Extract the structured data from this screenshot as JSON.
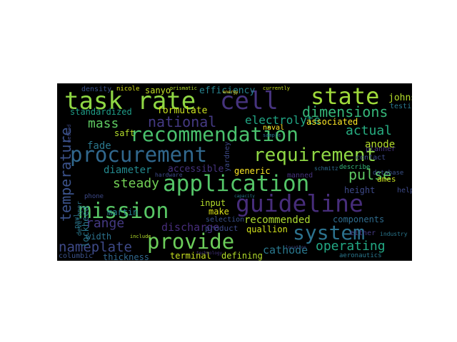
{
  "background": "#000000",
  "page_background": "#ffffff",
  "colormap": "viridis",
  "words": [
    {
      "text": "task rate",
      "color": "#8fd744"
    },
    {
      "text": "cell",
      "color": "#46337e"
    },
    {
      "text": "state",
      "color": "#9fda3a"
    },
    {
      "text": "recommendation",
      "color": "#4ac16d"
    },
    {
      "text": "procurement",
      "color": "#31688e"
    },
    {
      "text": "requirement",
      "color": "#8fd744"
    },
    {
      "text": "application",
      "color": "#54c568"
    },
    {
      "text": "guideline",
      "color": "#472d7b"
    },
    {
      "text": "mission",
      "color": "#58c765"
    },
    {
      "text": "system",
      "color": "#2c728e"
    },
    {
      "text": "provide",
      "color": "#6ccd5a"
    },
    {
      "text": "dimensions",
      "color": "#35b779"
    },
    {
      "text": "national",
      "color": "#443983"
    },
    {
      "text": "mass",
      "color": "#5ec962"
    },
    {
      "text": "temperature",
      "color": "#3b528b"
    },
    {
      "text": "actual",
      "color": "#27ad81"
    },
    {
      "text": "electrolyte",
      "color": "#21a685"
    },
    {
      "text": "steady",
      "color": "#73d056"
    },
    {
      "text": "pulse",
      "color": "#5ec962"
    },
    {
      "text": "range",
      "color": "#443983"
    },
    {
      "text": "nameplate",
      "color": "#3e4a89"
    },
    {
      "text": "discharge",
      "color": "#472d7b"
    },
    {
      "text": "operating",
      "color": "#22a884"
    },
    {
      "text": "composition",
      "color": "#33638d"
    },
    {
      "text": "cathode",
      "color": "#2a788e"
    },
    {
      "text": "diameter",
      "color": "#23898e"
    },
    {
      "text": "anode",
      "color": "#b5de2b"
    },
    {
      "text": "fade",
      "color": "#2a788e"
    },
    {
      "text": "formulate",
      "color": "#cae11f"
    },
    {
      "text": "standardized",
      "color": "#1f9e89"
    },
    {
      "text": "associated",
      "color": "#fde725"
    },
    {
      "text": "recommended",
      "color": "#addc30"
    },
    {
      "text": "accessible",
      "color": "#46337e"
    },
    {
      "text": "generic",
      "color": "#fde725"
    },
    {
      "text": "height",
      "color": "#3e4a89"
    },
    {
      "text": "components",
      "color": "#2f6c8e"
    },
    {
      "text": "quallion",
      "color": "#d2e21b"
    },
    {
      "text": "input",
      "color": "#b5de2b"
    },
    {
      "text": "make",
      "color": "#dde318"
    },
    {
      "text": "selection",
      "color": "#3b528b"
    },
    {
      "text": "product",
      "color": "#3e4a89"
    },
    {
      "text": "terminal",
      "color": "#c8e020"
    },
    {
      "text": "defining",
      "color": "#b5de2b"
    },
    {
      "text": "width",
      "color": "#2c728e"
    },
    {
      "text": "thickness",
      "color": "#31688e"
    },
    {
      "text": "columbic",
      "color": "#3b528b"
    },
    {
      "text": "martin",
      "color": "#26828e"
    },
    {
      "text": "lockheed",
      "color": "#2a788e"
    },
    {
      "text": "saft",
      "color": "#b5de2b"
    },
    {
      "text": "sanyo",
      "color": "#c0df25"
    },
    {
      "text": "efficiency",
      "color": "#26828e"
    },
    {
      "text": "yardney",
      "color": "#3e4a89"
    },
    {
      "text": "naval",
      "color": "#fde725"
    },
    {
      "text": "johnson",
      "color": "#b5de2b"
    },
    {
      "text": "contact",
      "color": "#3e4a89"
    },
    {
      "text": "testing",
      "color": "#2a788e"
    },
    {
      "text": "planner",
      "color": "#46337e"
    },
    {
      "text": "database",
      "color": "#3b528b"
    },
    {
      "text": "manned",
      "color": "#46337e"
    },
    {
      "text": "describe",
      "color": "#35b779"
    },
    {
      "text": "schmitz",
      "color": "#2f6c8e"
    },
    {
      "text": "ames",
      "color": "#c8e020"
    },
    {
      "text": "help",
      "color": "#3e4a89"
    },
    {
      "text": "either",
      "color": "#443983"
    },
    {
      "text": "aeronautics",
      "color": "#2a788e"
    },
    {
      "text": "industry",
      "color": "#2a788e"
    },
    {
      "text": "developer",
      "color": "#2a788e"
    },
    {
      "text": "phone",
      "color": "#3e4a89"
    },
    {
      "text": "paul",
      "color": "#2a788e"
    },
    {
      "text": "hardware",
      "color": "#3e4a89"
    },
    {
      "text": "nicole",
      "color": "#d8e219"
    },
    {
      "text": "density",
      "color": "#3b528b"
    },
    {
      "text": "prismatic",
      "color": "#b5de2b"
    },
    {
      "text": "currently",
      "color": "#c8e020"
    },
    {
      "text": "energy",
      "color": "#fde725"
    },
    {
      "text": "sample",
      "color": "#2a788e"
    },
    {
      "text": "include",
      "color": "#b5de2b"
    },
    {
      "text": "method",
      "color": "#3e4a89"
    },
    {
      "text": "location",
      "color": "#3e4a89"
    },
    {
      "text": "technology",
      "color": "#46337e"
    },
    {
      "text": "capacity",
      "color": "#2a788e"
    }
  ]
}
